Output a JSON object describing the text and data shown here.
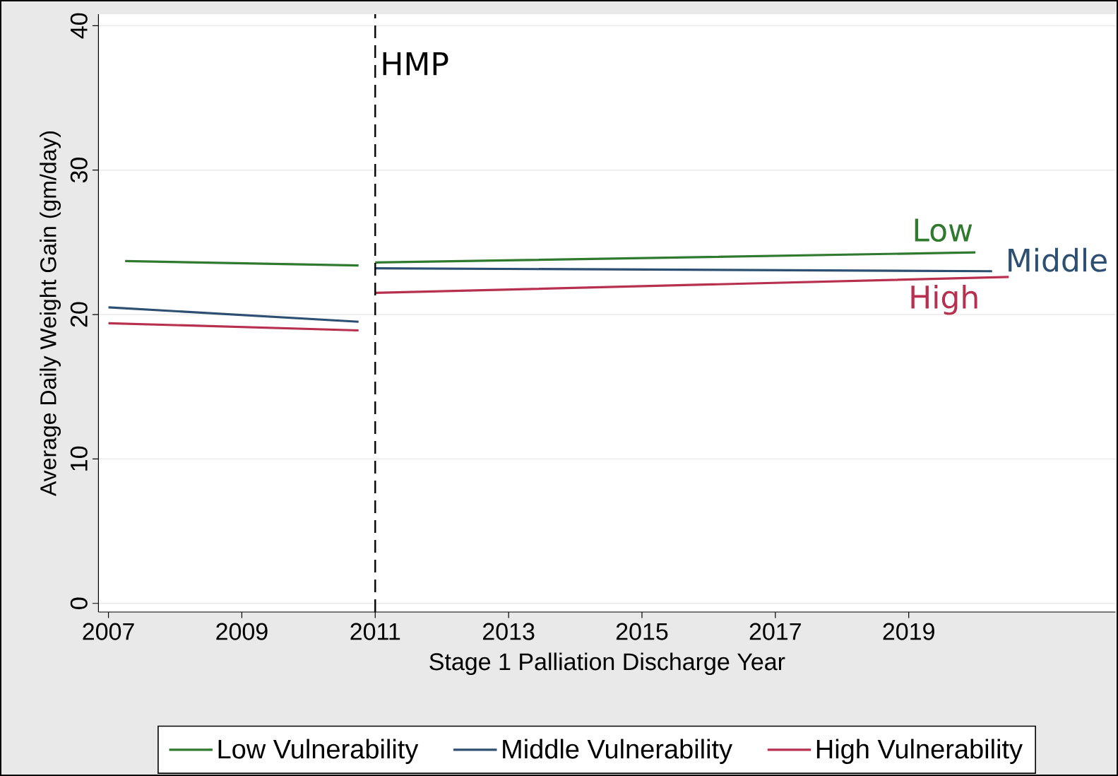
{
  "chart_data": {
    "type": "line",
    "xlabel": "Stage 1 Palliation Discharge Year",
    "ylabel": "Average Daily Weight Gain (gm/day)",
    "xlim": [
      2006.85,
      2022.1
    ],
    "ylim": [
      -0.6,
      40.8
    ],
    "xticks": [
      2007,
      2009,
      2011,
      2013,
      2015,
      2017,
      2019
    ],
    "yticks": [
      0,
      10,
      20,
      30,
      40
    ],
    "grid": "y",
    "legend": "bottom",
    "line_style": "solid",
    "marker": "none",
    "series": [
      {
        "name": "Low Vulnerability",
        "color": "#2f7a2f",
        "x": [
          2007.25,
          2010.75,
          2010.9,
          2011,
          2020
        ],
        "values": [
          23.7,
          23.4,
          null,
          23.6,
          24.3
        ]
      },
      {
        "name": "Middle Vulnerability",
        "color": "#2c4f72",
        "x": [
          2007,
          2010.75,
          2010.9,
          2011,
          2020.25
        ],
        "values": [
          20.5,
          19.5,
          null,
          23.2,
          23.0
        ]
      },
      {
        "name": "High Vulnerability",
        "color": "#b8304f",
        "x": [
          2007,
          2010.75,
          2010.9,
          2011,
          2020.5
        ],
        "values": [
          19.4,
          18.9,
          null,
          21.5,
          22.6
        ]
      }
    ],
    "ref_lines": [
      {
        "axis": "x",
        "value": 2011,
        "label": "HMP",
        "line_style": "dashed",
        "color": "#000000"
      }
    ],
    "annotations": [
      "Low",
      "Middle",
      "High"
    ]
  }
}
